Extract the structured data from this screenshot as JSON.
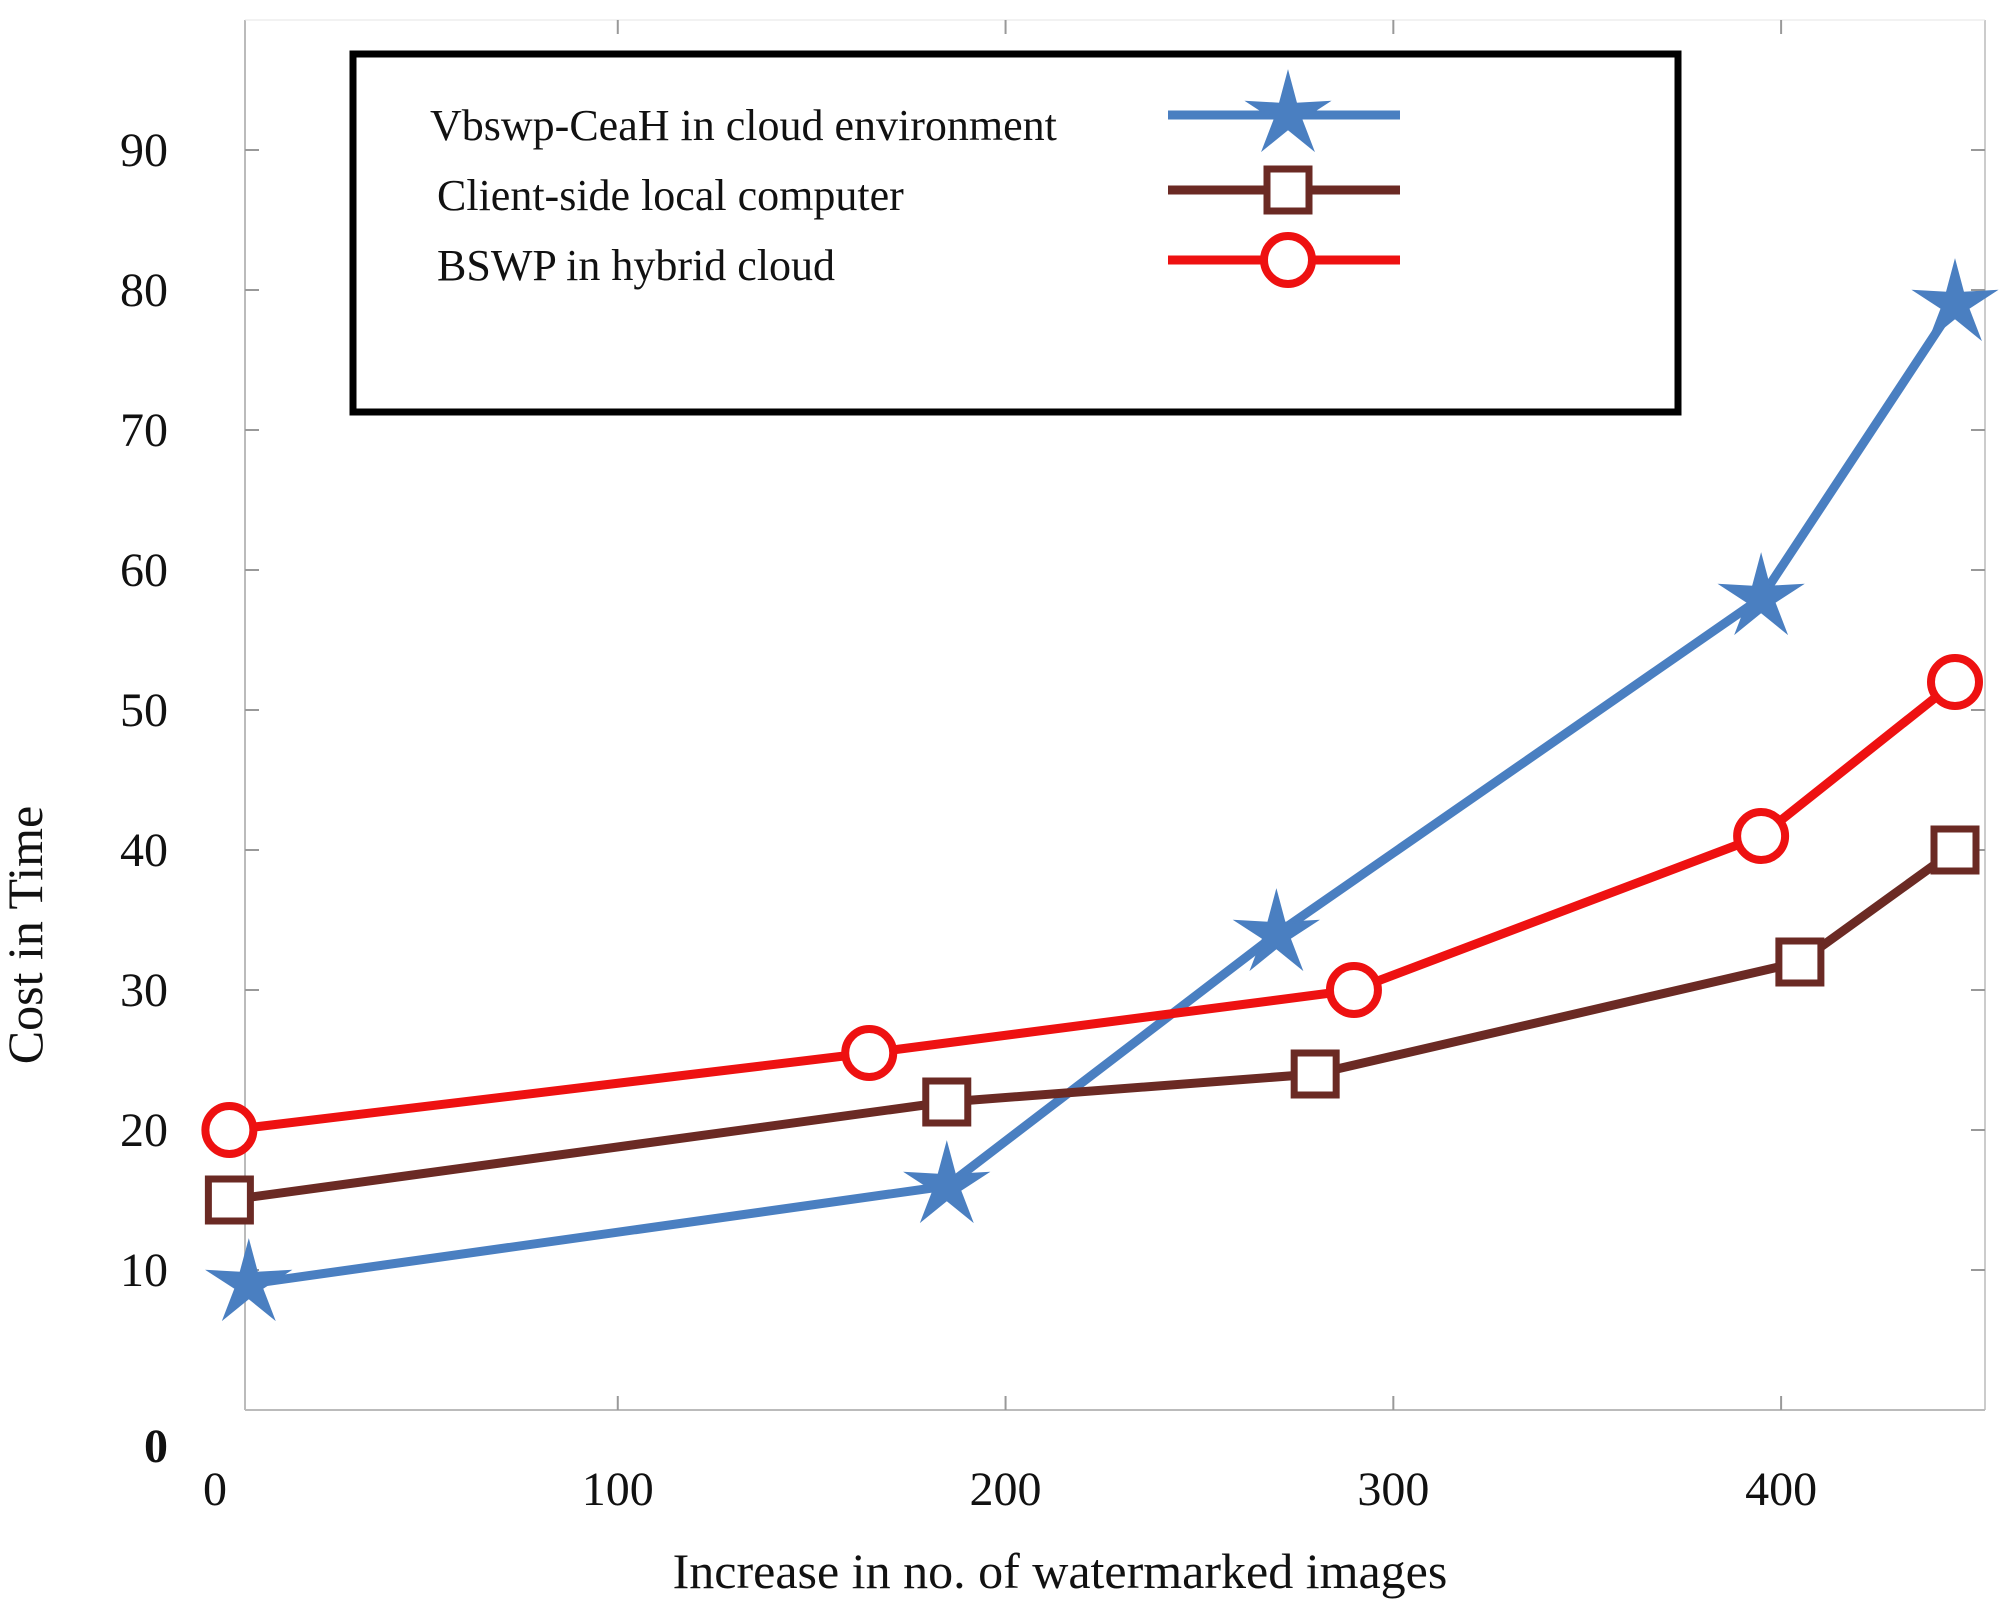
{
  "chart_data": {
    "type": "line",
    "title": "",
    "xlabel": "Increase in no. of watermarked images",
    "ylabel": "Cost in Time",
    "xlim": [
      0,
      450
    ],
    "ylim": [
      0,
      90
    ],
    "x_ticks": [
      "0",
      "100",
      "200",
      "300",
      "400"
    ],
    "y_ticks": [
      "0",
      "10",
      "20",
      "30",
      "40",
      "50",
      "60",
      "70",
      "80",
      "90"
    ],
    "grid": false,
    "legend_position": "top",
    "series": [
      {
        "name": "Vbswp-CeaH in cloud environment",
        "color": "#4a7fc1",
        "marker": "star",
        "points": [
          [
            10,
            9
          ],
          [
            190,
            16
          ],
          [
            275,
            34
          ],
          [
            400,
            58
          ],
          [
            450,
            79
          ]
        ]
      },
      {
        "name": "Client-side local computer",
        "color": "#6b2a24",
        "marker": "square",
        "points": [
          [
            5,
            15
          ],
          [
            190,
            22
          ],
          [
            285,
            24
          ],
          [
            410,
            32
          ],
          [
            450,
            40
          ]
        ]
      },
      {
        "name": "BSWP in hybrid cloud",
        "color": "#ee1111",
        "marker": "circle",
        "points": [
          [
            5,
            20
          ],
          [
            170,
            25.5
          ],
          [
            295,
            30
          ],
          [
            400,
            41
          ],
          [
            450,
            52
          ]
        ]
      }
    ]
  }
}
